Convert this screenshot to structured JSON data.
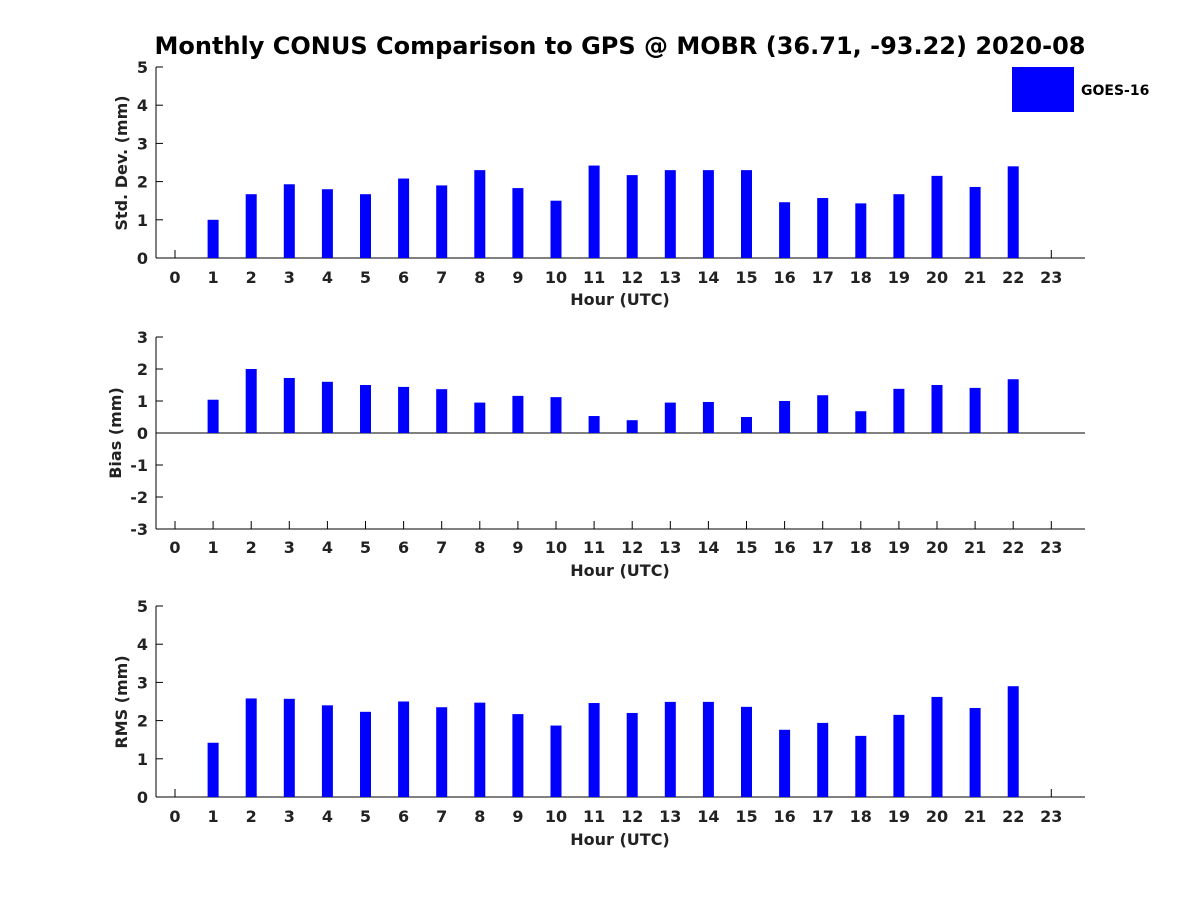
{
  "title": "Monthly CONUS Comparison to GPS @ MOBR (36.71, -93.22) 2020-08",
  "legend": {
    "label": "GOES-16",
    "position": "top-right"
  },
  "colors": {
    "bar": "#0000ff",
    "axis": "#000000",
    "text": "#222222"
  },
  "chart_data": [
    {
      "type": "bar",
      "categories": [
        "0",
        "1",
        "2",
        "3",
        "4",
        "5",
        "6",
        "7",
        "8",
        "9",
        "10",
        "11",
        "12",
        "13",
        "14",
        "15",
        "16",
        "17",
        "18",
        "19",
        "20",
        "21",
        "22",
        "23"
      ],
      "series": [
        {
          "name": "GOES-16",
          "values": [
            null,
            1.0,
            1.67,
            1.93,
            1.8,
            1.67,
            2.08,
            1.9,
            2.3,
            1.83,
            1.5,
            2.42,
            2.17,
            2.3,
            2.3,
            2.3,
            1.46,
            1.57,
            1.43,
            1.67,
            2.15,
            1.86,
            2.4,
            null
          ]
        }
      ],
      "xlabel": "Hour (UTC)",
      "ylabel": "Std. Dev. (mm)",
      "ylim": [
        0,
        5
      ],
      "yticks": [
        "0",
        "1",
        "2",
        "3",
        "4",
        "5"
      ],
      "grid": false
    },
    {
      "type": "bar",
      "categories": [
        "0",
        "1",
        "2",
        "3",
        "4",
        "5",
        "6",
        "7",
        "8",
        "9",
        "10",
        "11",
        "12",
        "13",
        "14",
        "15",
        "16",
        "17",
        "18",
        "19",
        "20",
        "21",
        "22",
        "23"
      ],
      "series": [
        {
          "name": "GOES-16",
          "values": [
            null,
            1.04,
            2.0,
            1.72,
            1.6,
            1.5,
            1.44,
            1.37,
            0.95,
            1.16,
            1.12,
            0.53,
            0.4,
            0.95,
            0.97,
            0.5,
            1.0,
            1.18,
            0.68,
            1.38,
            1.5,
            1.41,
            1.68,
            null
          ]
        }
      ],
      "xlabel": "Hour (UTC)",
      "ylabel": "Bias (mm)",
      "ylim": [
        -3,
        3
      ],
      "yticks": [
        "-3",
        "-2",
        "-1",
        "0",
        "1",
        "2",
        "3"
      ],
      "grid": false
    },
    {
      "type": "bar",
      "categories": [
        "0",
        "1",
        "2",
        "3",
        "4",
        "5",
        "6",
        "7",
        "8",
        "9",
        "10",
        "11",
        "12",
        "13",
        "14",
        "15",
        "16",
        "17",
        "18",
        "19",
        "20",
        "21",
        "22",
        "23"
      ],
      "series": [
        {
          "name": "GOES-16",
          "values": [
            null,
            1.42,
            2.58,
            2.57,
            2.4,
            2.23,
            2.5,
            2.35,
            2.47,
            2.17,
            1.87,
            2.46,
            2.2,
            2.49,
            2.49,
            2.36,
            1.76,
            1.94,
            1.6,
            2.15,
            2.62,
            2.33,
            2.9,
            null
          ]
        }
      ],
      "xlabel": "Hour (UTC)",
      "ylabel": "RMS (mm)",
      "ylim": [
        0,
        5
      ],
      "yticks": [
        "0",
        "1",
        "2",
        "3",
        "4",
        "5"
      ],
      "grid": false
    }
  ]
}
